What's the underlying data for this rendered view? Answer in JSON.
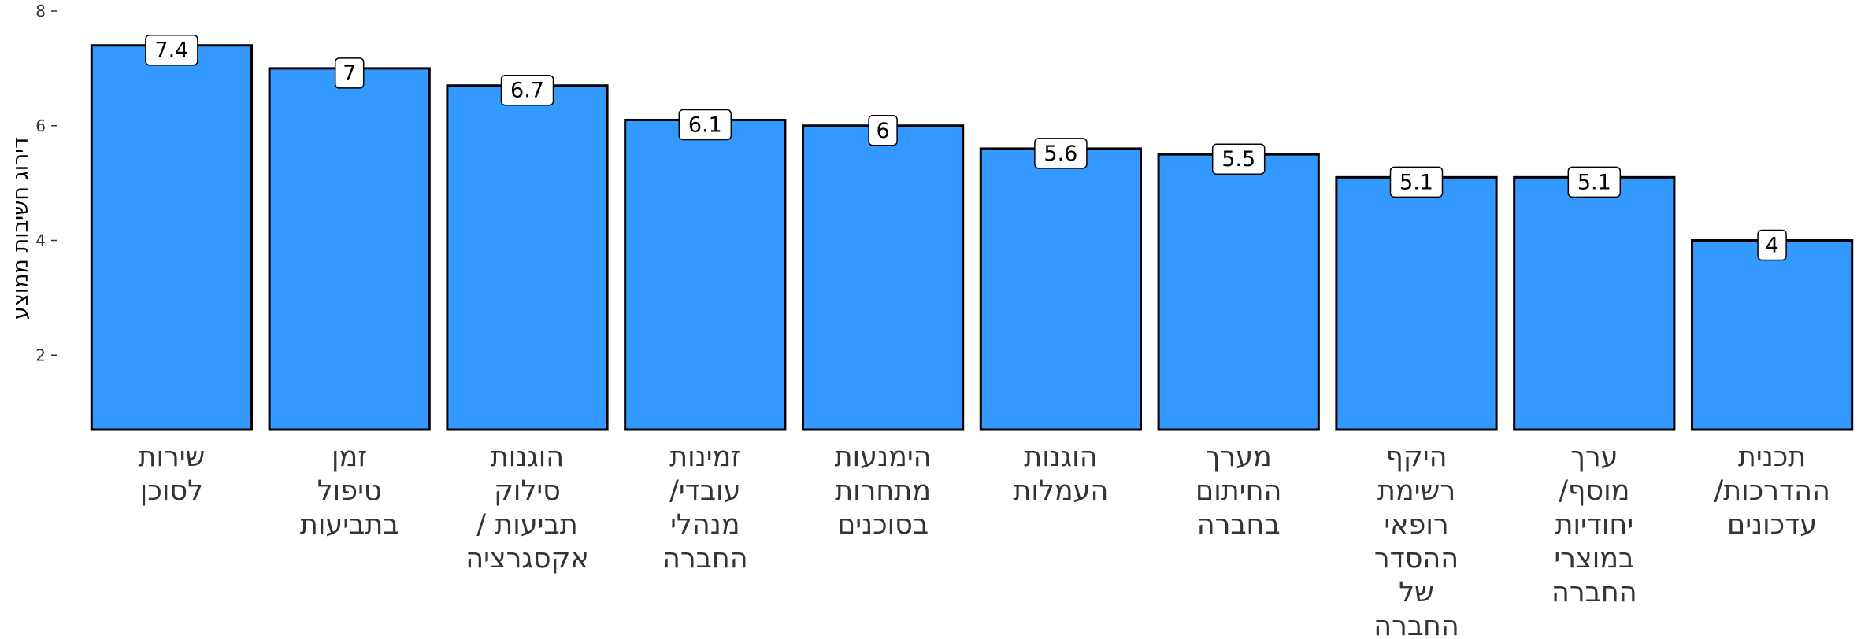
{
  "chart_data": {
    "type": "bar",
    "categories": [
      [
        "שירות",
        "לסוכן"
      ],
      [
        "זמן",
        "טיפול",
        "בתביעות"
      ],
      [
        "הוגנות",
        "סילוק",
        "תביעות /",
        "אקסגרציה"
      ],
      [
        "זמינות",
        "עובדי/",
        "מנהלי",
        "החברה"
      ],
      [
        "הימנעות",
        "מתחרות",
        "בסוכנים"
      ],
      [
        "הוגנות",
        "העמלות"
      ],
      [
        "מערך",
        "החיתום",
        "בחברה"
      ],
      [
        "היקף",
        "רשימת",
        "רופאי",
        "ההסדר",
        "של",
        "החברה"
      ],
      [
        "ערך",
        "מוסף/",
        "יחודיות",
        "במוצרי",
        "החברה"
      ],
      [
        "תכנית",
        "ההדרכות/",
        "עדכונים"
      ]
    ],
    "values": [
      7.4,
      7.0,
      6.7,
      6.1,
      6.0,
      5.6,
      5.5,
      5.1,
      5.1,
      4.0
    ],
    "data_labels": [
      "7.4",
      "7",
      "6.7",
      "6.1",
      "6",
      "5.6",
      "5.5",
      "5.1",
      "5.1",
      "4"
    ],
    "ylabel": "דירוג חשיבות ממוצע",
    "xlabel": "",
    "title": "",
    "ylim": [
      0.7,
      8.0
    ],
    "yticks": [
      2,
      4,
      6,
      8
    ],
    "ytick_labels": [
      "2",
      "4",
      "6",
      "8"
    ],
    "grid": false,
    "legend": "none",
    "colors": {
      "bar_fill": "#3399FF",
      "bar_stroke": "#000000",
      "label_bg": "#FFFFFF"
    }
  }
}
